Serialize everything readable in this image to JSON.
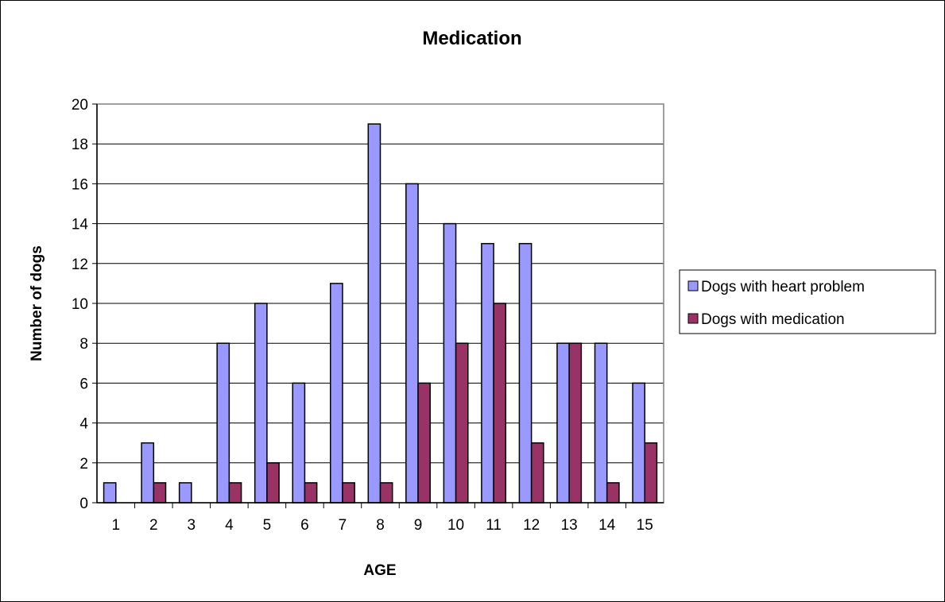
{
  "chart_data": {
    "type": "bar",
    "title": "Medication",
    "xlabel": "AGE",
    "ylabel": "Number of dogs",
    "ylim": [
      0,
      20
    ],
    "ytick_step": 2,
    "yticks": [
      "0",
      "2",
      "4",
      "6",
      "8",
      "10",
      "12",
      "14",
      "16",
      "18",
      "20"
    ],
    "grid": true,
    "legend_position": "right",
    "categories": [
      "1",
      "2",
      "3",
      "4",
      "5",
      "6",
      "7",
      "8",
      "9",
      "10",
      "11",
      "12",
      "13",
      "14",
      "15"
    ],
    "series": [
      {
        "name": "Dogs with heart problem",
        "color": "#9999ff",
        "values": [
          1,
          3,
          1,
          8,
          10,
          6,
          11,
          19,
          16,
          14,
          13,
          13,
          8,
          8,
          6
        ]
      },
      {
        "name": "Dogs with medication",
        "color": "#993366",
        "values": [
          0,
          1,
          0,
          1,
          2,
          1,
          1,
          1,
          6,
          8,
          10,
          3,
          8,
          1,
          3
        ]
      }
    ]
  }
}
